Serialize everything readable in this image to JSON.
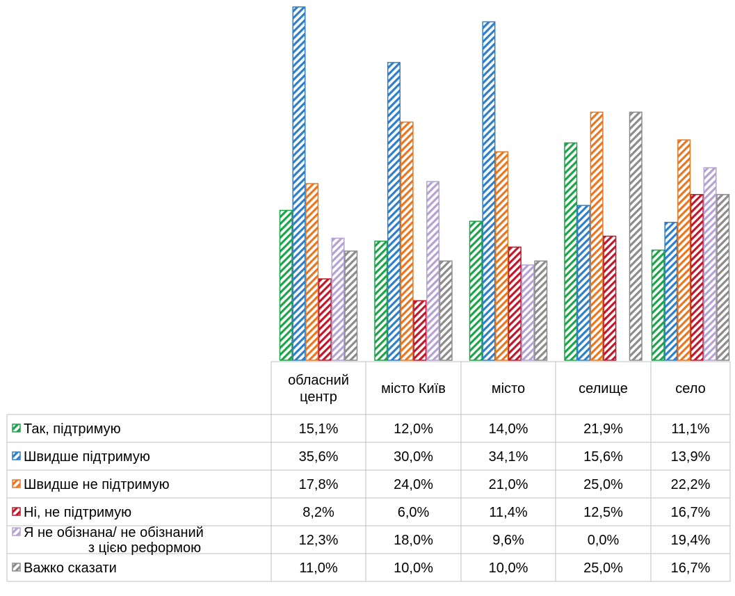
{
  "chart_data": {
    "type": "bar",
    "title": "",
    "xlabel": "",
    "ylabel": "",
    "grid": false,
    "legend": "data-table",
    "ylim": [
      0,
      36
    ],
    "categories": [
      [
        "обласний",
        "центр"
      ],
      [
        "місто Київ"
      ],
      [
        "місто"
      ],
      [
        "селище"
      ],
      [
        "село"
      ]
    ],
    "series": [
      {
        "name": [
          "Так, підтримую"
        ],
        "color": "#1fa34a",
        "values": [
          15.1,
          12.0,
          14.0,
          21.9,
          11.1
        ],
        "labels": [
          "15,1%",
          "12,0%",
          "14,0%",
          "21,9%",
          "11,1%"
        ]
      },
      {
        "name": [
          "Швидше підтримую"
        ],
        "color": "#2f7fc8",
        "values": [
          35.6,
          30.0,
          34.1,
          15.6,
          13.9
        ],
        "labels": [
          "35,6%",
          "30,0%",
          "34,1%",
          "15,6%",
          "13,9%"
        ]
      },
      {
        "name": [
          "Швидше не підтримую"
        ],
        "color": "#e87722",
        "values": [
          17.8,
          24.0,
          21.0,
          25.0,
          22.2
        ],
        "labels": [
          "17,8%",
          "24,0%",
          "21,0%",
          "25,0%",
          "22,2%"
        ]
      },
      {
        "name": [
          "Ні, не підтримую"
        ],
        "color": "#c0182a",
        "values": [
          8.2,
          6.0,
          11.4,
          12.5,
          16.7
        ],
        "labels": [
          "8,2%",
          "6,0%",
          "11,4%",
          "12,5%",
          "16,7%"
        ]
      },
      {
        "name": [
          "Я не обізнана/ не обізнаний",
          "з цією реформою"
        ],
        "color": "#b3a2d2",
        "values": [
          12.3,
          18.0,
          9.6,
          0.0,
          19.4
        ],
        "labels": [
          "12,3%",
          "18,0%",
          "9,6%",
          "0,0%",
          "19,4%"
        ]
      },
      {
        "name": [
          "Важко сказати"
        ],
        "color": "#8c8c8c",
        "values": [
          11.0,
          10.0,
          10.0,
          25.0,
          16.7
        ],
        "labels": [
          "11,0%",
          "10,0%",
          "10,0%",
          "25,0%",
          "16,7%"
        ]
      }
    ]
  }
}
